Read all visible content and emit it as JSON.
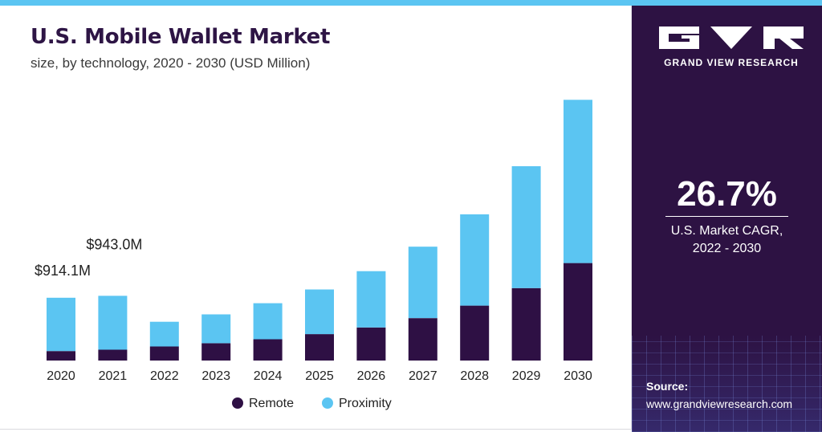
{
  "chart_data": {
    "type": "bar",
    "stacked": true,
    "title": "U.S. Mobile Wallet Market",
    "subtitle": "size, by technology, 2020 - 2030 (USD Million)",
    "categories": [
      "2020",
      "2021",
      "2022",
      "2023",
      "2024",
      "2025",
      "2026",
      "2027",
      "2028",
      "2029",
      "2030"
    ],
    "series": [
      {
        "name": "Remote",
        "color": "#2e1044",
        "values": [
          138,
          158,
          205,
          252,
          310,
          385,
          482,
          618,
          800,
          1055,
          1420
        ]
      },
      {
        "name": "Proximity",
        "color": "#5bc5f2",
        "values": [
          776.1,
          785,
          360,
          420,
          525,
          650,
          820,
          1040,
          1330,
          1775,
          2378
        ]
      }
    ],
    "annotations": [
      {
        "category": "2020",
        "text": "$914.1M"
      },
      {
        "category": "2021",
        "text": "$943.0M"
      }
    ],
    "ylim": [
      0,
      4000
    ],
    "grid": false,
    "legend": "bottom-center",
    "xlabel": "",
    "ylabel": ""
  },
  "side": {
    "brand": "GRAND VIEW RESEARCH",
    "cagr_value": "26.7%",
    "cagr_label_line1": "U.S. Market CAGR,",
    "cagr_label_line2": "2022 - 2030",
    "source_label": "Source:",
    "source_url": "www.grandviewresearch.com"
  },
  "colors": {
    "remote": "#2e1044",
    "proximity": "#5bc5f2",
    "panel": "#2d1243",
    "title": "#2e1545"
  }
}
